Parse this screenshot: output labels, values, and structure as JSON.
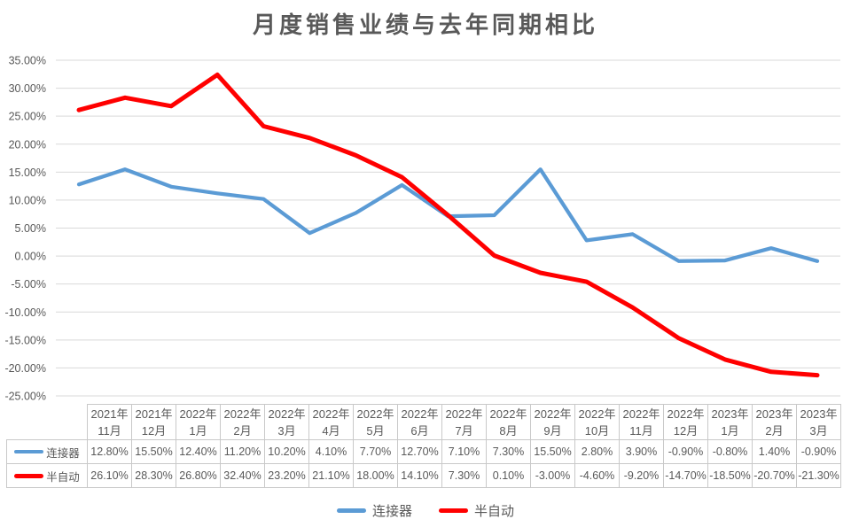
{
  "title": "月度销售业绩与去年同期相比",
  "colors": {
    "series1": "#5B9BD5",
    "series2": "#FF0000",
    "gridline": "#D9D9D9",
    "text": "#595959",
    "table_border": "#C9C9C9"
  },
  "chart_data": {
    "type": "line",
    "title": "月度销售业绩与去年同期相比",
    "categories": [
      "2021年11月",
      "2021年12月",
      "2022年1月",
      "2022年2月",
      "2022年3月",
      "2022年4月",
      "2022年5月",
      "2022年6月",
      "2022年7月",
      "2022年8月",
      "2022年9月",
      "2022年10月",
      "2022年11月",
      "2022年12月",
      "2023年1月",
      "2023年2月",
      "2023年3月"
    ],
    "series": [
      {
        "name": "连接器",
        "color": "#5B9BD5",
        "values": [
          12.8,
          15.5,
          12.4,
          11.2,
          10.2,
          4.1,
          7.7,
          12.7,
          7.1,
          7.3,
          15.5,
          2.8,
          3.9,
          -0.9,
          -0.8,
          1.4,
          -0.9
        ]
      },
      {
        "name": "半自动",
        "color": "#FF0000",
        "values": [
          26.1,
          28.3,
          26.8,
          32.4,
          23.2,
          21.1,
          18.0,
          14.1,
          7.3,
          0.1,
          -3.0,
          -4.6,
          -9.2,
          -14.7,
          -18.5,
          -20.7,
          -21.3
        ]
      }
    ],
    "ylim": [
      -25,
      35
    ],
    "y_tick_step": 5,
    "y_tick_labels": [
      "35.00%",
      "30.00%",
      "25.00%",
      "20.00%",
      "15.00%",
      "10.00%",
      "5.00%",
      "0.00%",
      "-5.00%",
      "-10.00%",
      "-15.00%",
      "-20.00%",
      "-25.00%"
    ],
    "value_format": "0.00%",
    "grid": true,
    "legend_position": "bottom",
    "data_table": true
  }
}
